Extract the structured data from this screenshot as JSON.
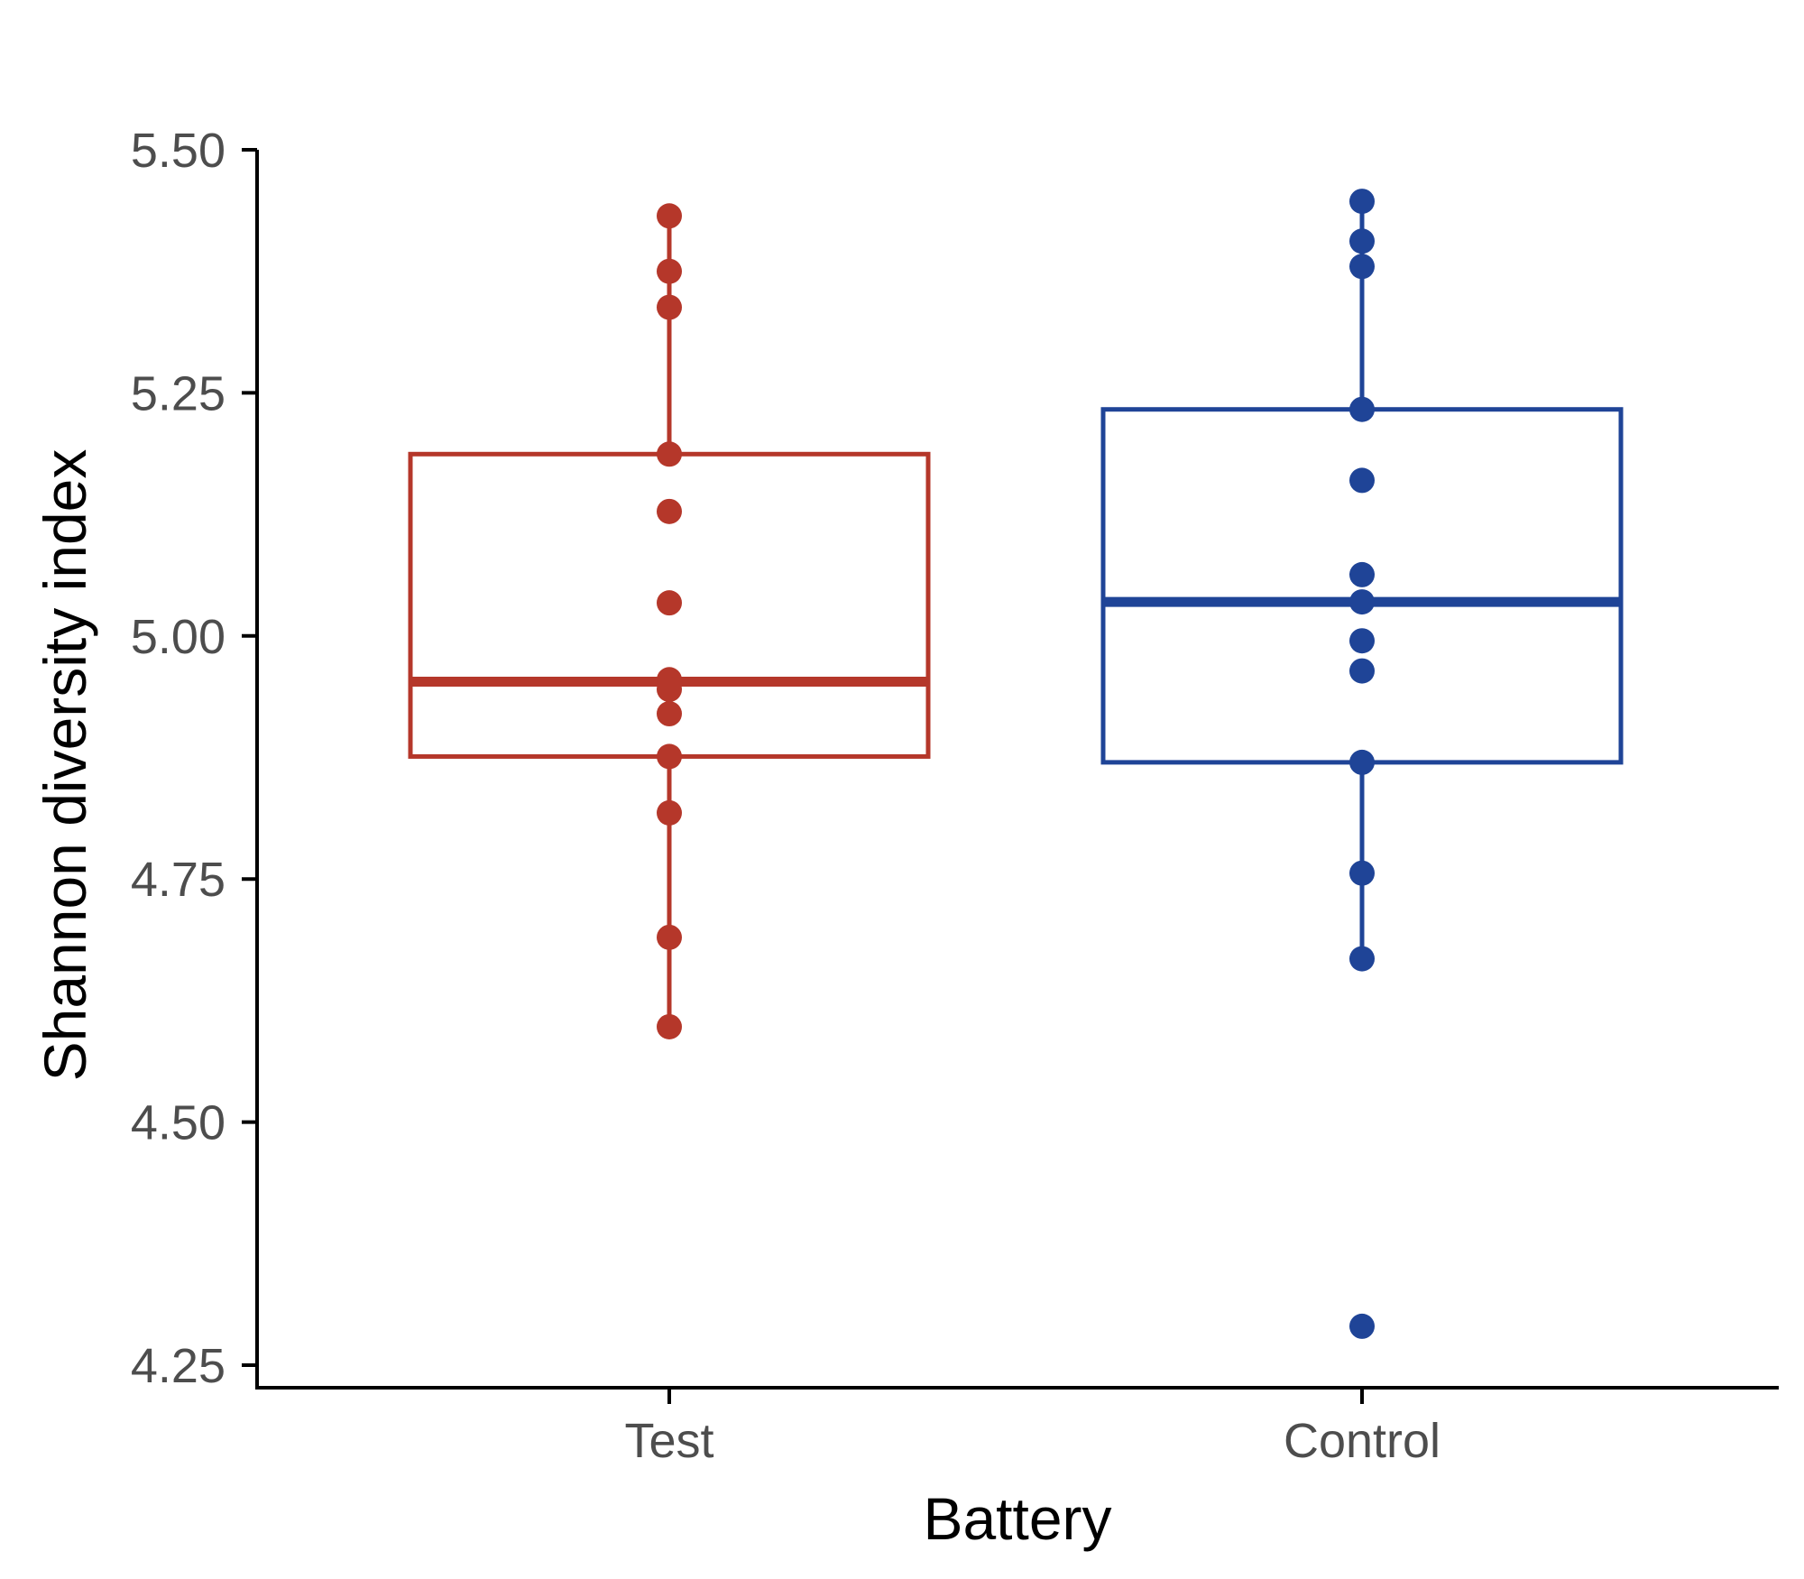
{
  "chart_data": {
    "type": "box",
    "title": "",
    "xlabel": "Battery",
    "ylabel": "Shannon diversity index",
    "ylim": [
      4.25,
      5.5
    ],
    "yticks": [
      "4.25",
      "4.50",
      "4.75",
      "5.00",
      "5.25",
      "5.50"
    ],
    "categories": [
      "Test",
      "Control"
    ],
    "groups": [
      {
        "name": "Test",
        "color": "#B5372A",
        "q1": 4.876,
        "median": 4.953,
        "q3": 5.187,
        "whisker_low": 4.598,
        "whisker_high": 5.432,
        "points": [
          5.432,
          5.375,
          5.338,
          5.187,
          5.128,
          5.034,
          4.955,
          4.945,
          4.92,
          4.876,
          4.818,
          4.69,
          4.598
        ]
      },
      {
        "name": "Control",
        "color": "#1F4497",
        "q1": 4.87,
        "median": 5.035,
        "q3": 5.233,
        "whisker_low": 4.668,
        "whisker_high": 5.447,
        "points": [
          5.447,
          5.406,
          5.38,
          5.233,
          5.16,
          5.063,
          5.035,
          4.995,
          4.964,
          4.87,
          4.756,
          4.668,
          4.29
        ]
      }
    ],
    "grid": false,
    "legend": "none"
  }
}
